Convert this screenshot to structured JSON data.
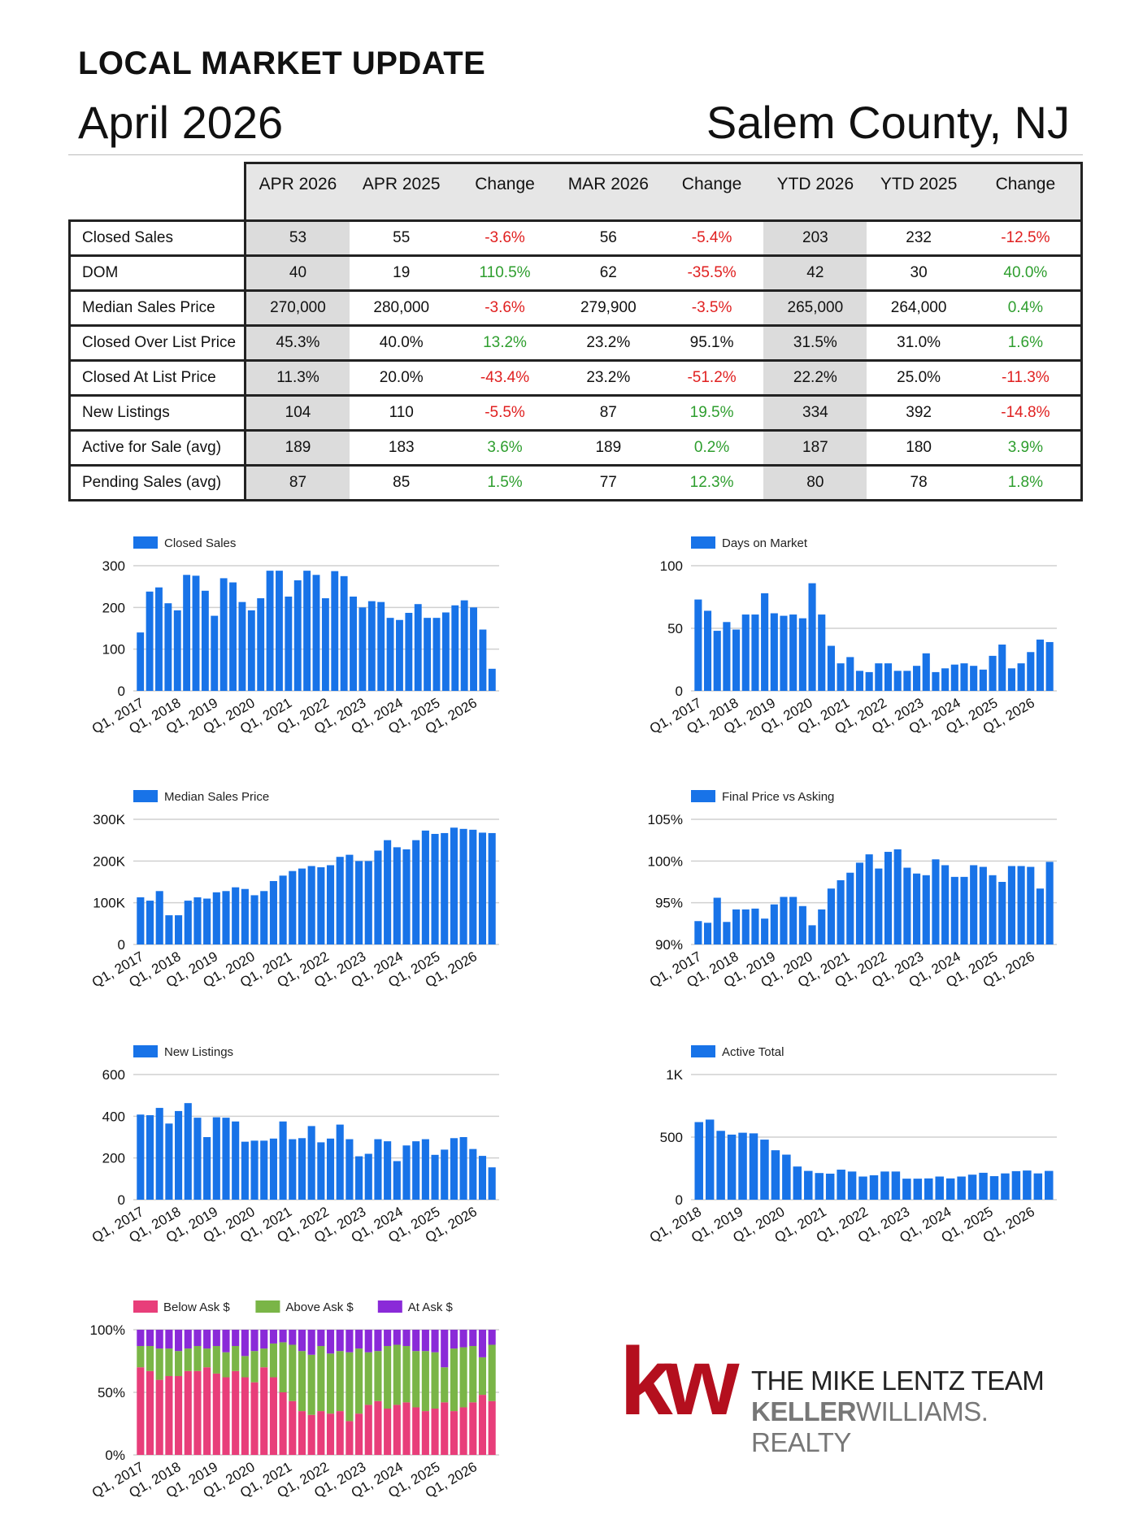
{
  "header": {
    "title": "LOCAL MARKET UPDATE",
    "month": "April 2026",
    "region": "Salem County, NJ"
  },
  "table": {
    "columns": [
      "APR 2026",
      "APR 2025",
      "Change",
      "MAR 2026",
      "Change",
      "YTD 2026",
      "YTD 2025",
      "Change"
    ],
    "rows": [
      {
        "label": "Closed Sales",
        "cells": [
          "53",
          "55",
          "-3.6%",
          "56",
          "-5.4%",
          "203",
          "232",
          "-12.5%"
        ],
        "colors": [
          "",
          "",
          "neg",
          "",
          "neg",
          "",
          "",
          "neg"
        ]
      },
      {
        "label": "DOM",
        "cells": [
          "40",
          "19",
          "110.5%",
          "62",
          "-35.5%",
          "42",
          "30",
          "40.0%"
        ],
        "colors": [
          "",
          "",
          "pos",
          "",
          "neg",
          "",
          "",
          "pos"
        ]
      },
      {
        "label": "Median Sales Price",
        "cells": [
          "270,000",
          "280,000",
          "-3.6%",
          "279,900",
          "-3.5%",
          "265,000",
          "264,000",
          "0.4%"
        ],
        "colors": [
          "",
          "",
          "neg",
          "",
          "neg",
          "",
          "",
          "pos"
        ]
      },
      {
        "label": "Closed Over List Price",
        "cells": [
          "45.3%",
          "40.0%",
          "13.2%",
          "23.2%",
          "95.1%",
          "31.5%",
          "31.0%",
          "1.6%"
        ],
        "colors": [
          "",
          "",
          "pos",
          "",
          "neu",
          "",
          "",
          "pos"
        ]
      },
      {
        "label": "Closed At List Price",
        "cells": [
          "11.3%",
          "20.0%",
          "-43.4%",
          "23.2%",
          "-51.2%",
          "22.2%",
          "25.0%",
          "-11.3%"
        ],
        "colors": [
          "",
          "",
          "neg",
          "",
          "neg",
          "",
          "",
          "neg"
        ]
      },
      {
        "label": "New Listings",
        "cells": [
          "104",
          "110",
          "-5.5%",
          "87",
          "19.5%",
          "334",
          "392",
          "-14.8%"
        ],
        "colors": [
          "",
          "",
          "neg",
          "",
          "pos",
          "",
          "",
          "neg"
        ]
      },
      {
        "label": "Active for Sale (avg)",
        "cells": [
          "189",
          "183",
          "3.6%",
          "189",
          "0.2%",
          "187",
          "180",
          "3.9%"
        ],
        "colors": [
          "",
          "",
          "pos",
          "",
          "pos",
          "",
          "",
          "pos"
        ]
      },
      {
        "label": "Pending Sales (avg)",
        "cells": [
          "87",
          "85",
          "1.5%",
          "77",
          "12.3%",
          "80",
          "78",
          "1.8%"
        ],
        "colors": [
          "",
          "",
          "pos",
          "",
          "pos",
          "",
          "",
          "pos"
        ]
      }
    ]
  },
  "logo": {
    "mark": "kw",
    "team": "THE MIKE LENTZ TEAM",
    "brand_bold": "KELLER",
    "brand_rest": "WILLIAMS",
    "brand_tail": ". REALTY"
  },
  "chart_data": [
    {
      "type": "bar",
      "id": "closed-sales",
      "legend": "Closed Sales",
      "x_labels": [
        "Q1, 2017",
        "Q1, 2018",
        "Q1, 2019",
        "Q1, 2020",
        "Q1, 2021",
        "Q1, 2022",
        "Q1, 2023",
        "Q1, 2024",
        "Q1, 2025",
        "Q1, 2026"
      ],
      "yticks": [
        0,
        100,
        200,
        300
      ],
      "ytick_labels": [
        "0",
        "100",
        "200",
        "300"
      ],
      "ylim": [
        0,
        300
      ],
      "values": [
        140,
        238,
        248,
        210,
        193,
        278,
        276,
        240,
        180,
        270,
        260,
        213,
        193,
        222,
        288,
        288,
        226,
        265,
        288,
        278,
        222,
        287,
        275,
        226,
        200,
        215,
        213,
        175,
        170,
        187,
        208,
        175,
        175,
        188,
        205,
        217,
        200,
        147,
        53
      ]
    },
    {
      "type": "bar",
      "id": "days-on-market",
      "legend": "Days on Market",
      "x_labels": [
        "Q1, 2017",
        "Q1, 2018",
        "Q1, 2019",
        "Q1, 2020",
        "Q1, 2021",
        "Q1, 2022",
        "Q1, 2023",
        "Q1, 2024",
        "Q1, 2025",
        "Q1, 2026"
      ],
      "yticks": [
        0,
        50,
        100
      ],
      "ytick_labels": [
        "0",
        "50",
        "100"
      ],
      "ylim": [
        0,
        100
      ],
      "values": [
        73,
        64,
        48,
        55,
        49,
        61,
        61,
        78,
        62,
        60,
        61,
        58,
        86,
        61,
        36,
        22,
        27,
        16,
        15,
        22,
        22,
        16,
        16,
        20,
        30,
        15,
        18,
        21,
        22,
        20,
        17,
        28,
        37,
        18,
        22,
        31,
        41,
        39
      ]
    },
    {
      "type": "bar",
      "id": "median-sales-price",
      "legend": "Median Sales Price",
      "x_labels": [
        "Q1, 2017",
        "Q1, 2018",
        "Q1, 2019",
        "Q1, 2020",
        "Q1, 2021",
        "Q1, 2022",
        "Q1, 2023",
        "Q1, 2024",
        "Q1, 2025",
        "Q1, 2026"
      ],
      "yticks": [
        0,
        100000,
        200000,
        300000
      ],
      "ytick_labels": [
        "0",
        "100K",
        "200K",
        "300K"
      ],
      "ylim": [
        0,
        300000
      ],
      "values": [
        113000,
        105000,
        128000,
        70000,
        70000,
        105000,
        113000,
        110000,
        125000,
        128000,
        137000,
        133000,
        118000,
        128000,
        152000,
        165000,
        176000,
        182000,
        188000,
        185000,
        190000,
        210000,
        215000,
        200000,
        200000,
        225000,
        250000,
        233000,
        228000,
        250000,
        273000,
        265000,
        267000,
        280000,
        277000,
        275000,
        268000,
        267000
      ]
    },
    {
      "type": "bar",
      "id": "final-price-vs-asking",
      "legend": "Final Price vs Asking",
      "x_labels": [
        "Q1, 2017",
        "Q1, 2018",
        "Q1, 2019",
        "Q1, 2020",
        "Q1, 2021",
        "Q1, 2022",
        "Q1, 2023",
        "Q1, 2024",
        "Q1, 2025",
        "Q1, 2026"
      ],
      "yticks": [
        90,
        95,
        100,
        105
      ],
      "ytick_labels": [
        "90%",
        "95%",
        "100%",
        "105%"
      ],
      "ylim": [
        90,
        105
      ],
      "values": [
        92.8,
        92.6,
        95.6,
        92.7,
        94.2,
        94.2,
        94.3,
        93.1,
        94.8,
        95.7,
        95.7,
        94.6,
        92.3,
        94.2,
        96.7,
        97.7,
        98.6,
        99.8,
        100.8,
        99.1,
        101.1,
        101.4,
        99.2,
        98.5,
        98.3,
        100.2,
        99.5,
        98.1,
        98.1,
        99.5,
        99.3,
        98.3,
        97.5,
        99.4,
        99.4,
        99.3,
        96.7,
        99.9
      ]
    },
    {
      "type": "bar",
      "id": "new-listings",
      "legend": "New Listings",
      "x_labels": [
        "Q1, 2017",
        "Q1, 2018",
        "Q1, 2019",
        "Q1, 2020",
        "Q1, 2021",
        "Q1, 2022",
        "Q1, 2023",
        "Q1, 2024",
        "Q1, 2025",
        "Q1, 2026"
      ],
      "yticks": [
        0,
        200,
        400,
        600
      ],
      "ytick_labels": [
        "0",
        "200",
        "400",
        "600"
      ],
      "ylim": [
        0,
        600
      ],
      "values": [
        408,
        405,
        440,
        365,
        425,
        463,
        393,
        300,
        395,
        393,
        375,
        278,
        283,
        283,
        293,
        375,
        290,
        295,
        353,
        275,
        293,
        360,
        290,
        208,
        220,
        290,
        280,
        185,
        260,
        280,
        290,
        215,
        240,
        295,
        300,
        243,
        210,
        155
      ]
    },
    {
      "type": "bar",
      "id": "active-total",
      "legend": "Active Total",
      "x_labels": [
        "Q1, 2018",
        "Q1, 2019",
        "Q1, 2020",
        "Q1, 2021",
        "Q1, 2022",
        "Q1, 2023",
        "Q1, 2024",
        "Q1, 2025",
        "Q1, 2026"
      ],
      "yticks": [
        0,
        500,
        1000
      ],
      "ytick_labels": [
        "0",
        "500",
        "1K"
      ],
      "ylim": [
        0,
        1000
      ],
      "values": [
        620,
        640,
        550,
        520,
        535,
        530,
        480,
        395,
        360,
        265,
        230,
        213,
        208,
        240,
        225,
        185,
        195,
        225,
        225,
        168,
        168,
        170,
        185,
        170,
        185,
        200,
        215,
        188,
        210,
        228,
        233,
        210,
        230
      ]
    },
    {
      "type": "bar",
      "stacked": "percent",
      "id": "ask-breakdown",
      "legend": [
        "Below Ask $",
        "Above Ask $",
        "At Ask $"
      ],
      "colors": [
        "#e83e7a",
        "#7ab547",
        "#8a2ad8"
      ],
      "x_labels": [
        "Q1, 2017",
        "Q1, 2018",
        "Q1, 2019",
        "Q1, 2020",
        "Q1, 2021",
        "Q1, 2022",
        "Q1, 2023",
        "Q1, 2024",
        "Q1, 2025",
        "Q1, 2026"
      ],
      "yticks": [
        0,
        50,
        100
      ],
      "ytick_labels": [
        "0%",
        "50%",
        "100%"
      ],
      "ylim": [
        0,
        100
      ],
      "series": [
        {
          "name": "Below Ask $",
          "values": [
            70,
            67,
            60,
            63,
            63,
            67,
            67,
            70,
            65,
            62,
            67,
            62,
            58,
            70,
            62,
            50,
            43,
            35,
            32,
            35,
            33,
            35,
            27,
            33,
            40,
            43,
            37,
            40,
            42,
            38,
            35,
            37,
            42,
            35,
            38,
            42,
            48,
            43
          ]
        },
        {
          "name": "Above Ask $",
          "values": [
            17,
            20,
            25,
            22,
            20,
            18,
            20,
            15,
            22,
            20,
            20,
            17,
            25,
            15,
            27,
            40,
            45,
            48,
            48,
            52,
            48,
            48,
            55,
            52,
            42,
            40,
            50,
            48,
            45,
            45,
            48,
            45,
            28,
            50,
            48,
            45,
            30,
            45
          ]
        },
        {
          "name": "At Ask $",
          "values": [
            13,
            13,
            15,
            15,
            17,
            15,
            13,
            15,
            13,
            18,
            13,
            21,
            17,
            15,
            11,
            10,
            12,
            17,
            20,
            13,
            19,
            17,
            18,
            15,
            18,
            17,
            13,
            12,
            13,
            17,
            17,
            18,
            30,
            15,
            14,
            13,
            22,
            12
          ]
        }
      ]
    }
  ]
}
